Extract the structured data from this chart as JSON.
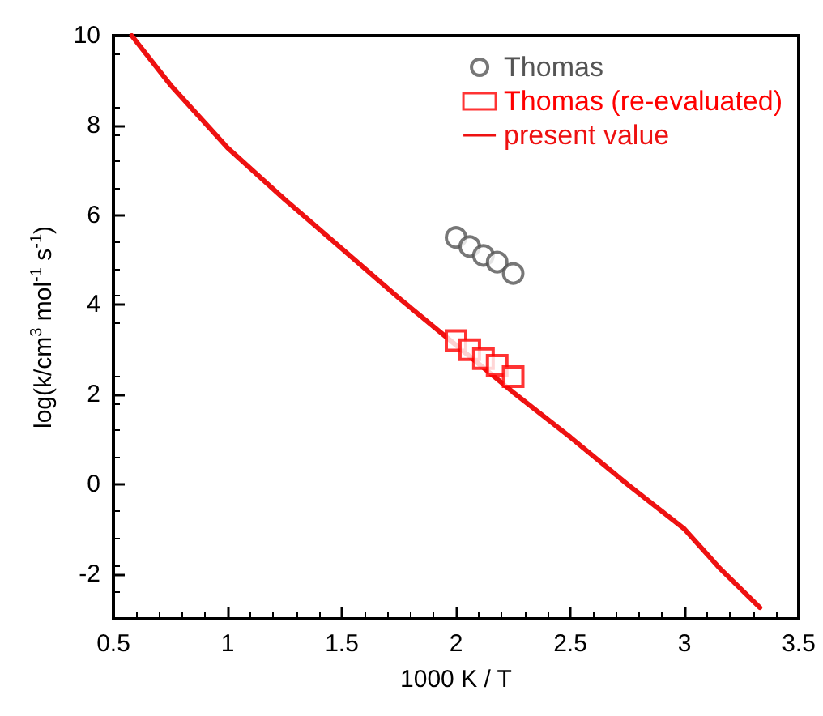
{
  "chart_data": {
    "type": "scatter",
    "xlabel": "1000 K / T",
    "ylabel": "log(k/cm$^{3}$ mol$^{-1}$ s$^{-1}$)",
    "xlim": [
      0.5,
      3.5
    ],
    "xticks": [
      0.5,
      1,
      1.5,
      2,
      2.5,
      3,
      3.5
    ],
    "ylim": [
      -3,
      10
    ],
    "yticks": [
      -2,
      0,
      2,
      4,
      6,
      8,
      10
    ],
    "legend": "top right",
    "grid": false,
    "series": [
      {
        "name": "Thomas",
        "marker": "circle",
        "color": "#555555",
        "x": [
          2.0,
          2.06,
          2.12,
          2.18,
          2.25
        ],
        "values": [
          5.5,
          5.3,
          5.1,
          4.95,
          4.7
        ]
      },
      {
        "name": "Thomas (re-evaluated)",
        "marker": "square",
        "color": "#ff0000",
        "x": [
          2.0,
          2.06,
          2.12,
          2.18,
          2.25
        ],
        "values": [
          3.2,
          3.0,
          2.8,
          2.65,
          2.4
        ]
      },
      {
        "name": "present value",
        "type": "line",
        "marker": "none",
        "line_style": "solid",
        "color": "#ee1111",
        "x": [
          0.58,
          0.75,
          1.0,
          1.25,
          1.5,
          1.75,
          2.0,
          2.25,
          2.5,
          2.75,
          3.0,
          3.15,
          3.33
        ],
        "values": [
          10,
          8.9,
          7.5,
          6.35,
          5.25,
          4.15,
          3.1,
          2.05,
          1.05,
          0.0,
          -1.0,
          -1.85,
          -2.75
        ]
      }
    ]
  }
}
